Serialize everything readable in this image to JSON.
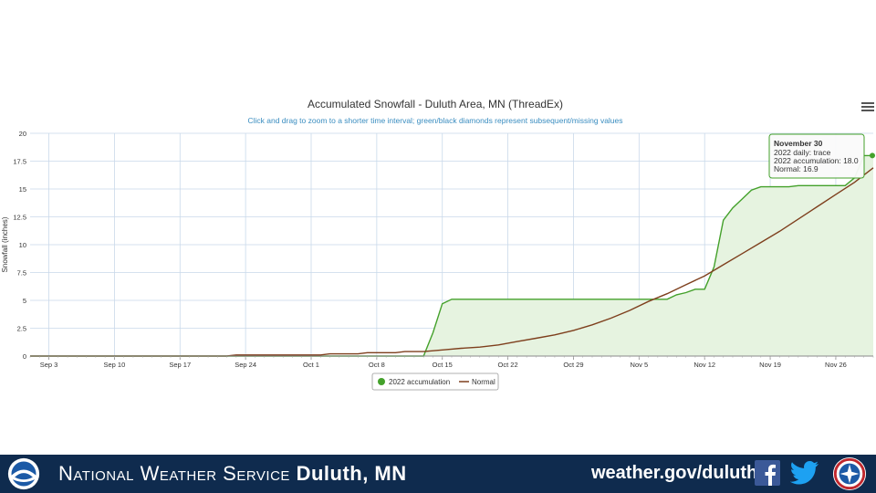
{
  "chart_data": {
    "type": "area",
    "title": "Accumulated Snowfall - Duluth Area, MN (ThreadEx)",
    "subtitle": "Click and drag to zoom to a shorter time interval; green/black diamonds represent subsequent/missing values",
    "ylabel": "Snowfall (inches)",
    "xlabel": "",
    "x_start": "2022-09-01",
    "x_end": "2022-11-30",
    "ylim": [
      0,
      20
    ],
    "yticks": [
      "0",
      "2.5",
      "5",
      "7.5",
      "10",
      "12.5",
      "15",
      "17.5",
      "20"
    ],
    "xticks": [
      "Sep 3",
      "Sep 10",
      "Sep 17",
      "Sep 24",
      "Oct 1",
      "Oct 8",
      "Oct 15",
      "Oct 22",
      "Oct 29",
      "Nov 5",
      "Nov 12",
      "Nov 19",
      "Nov 26"
    ],
    "xtick_dates": [
      "2022-09-03",
      "2022-09-10",
      "2022-09-17",
      "2022-09-24",
      "2022-10-01",
      "2022-10-08",
      "2022-10-15",
      "2022-10-22",
      "2022-10-29",
      "2022-11-05",
      "2022-11-12",
      "2022-11-19",
      "2022-11-26"
    ],
    "grid": true,
    "legend_position": "bottom-center",
    "series": [
      {
        "name": "2022 accumulation",
        "color": "#44a12b",
        "fill": "#e6f3e0",
        "type": "area",
        "points": [
          [
            "2022-09-01",
            0
          ],
          [
            "2022-10-13",
            0
          ],
          [
            "2022-10-14",
            2.1
          ],
          [
            "2022-10-15",
            4.7
          ],
          [
            "2022-10-16",
            5.1
          ],
          [
            "2022-11-08",
            5.1
          ],
          [
            "2022-11-09",
            5.5
          ],
          [
            "2022-11-10",
            5.7
          ],
          [
            "2022-11-11",
            6.0
          ],
          [
            "2022-11-12",
            6.0
          ],
          [
            "2022-11-13",
            8.0
          ],
          [
            "2022-11-14",
            12.2
          ],
          [
            "2022-11-15",
            13.3
          ],
          [
            "2022-11-16",
            14.1
          ],
          [
            "2022-11-17",
            14.9
          ],
          [
            "2022-11-18",
            15.2
          ],
          [
            "2022-11-19",
            15.2
          ],
          [
            "2022-11-20",
            15.2
          ],
          [
            "2022-11-21",
            15.2
          ],
          [
            "2022-11-22",
            15.3
          ],
          [
            "2022-11-27",
            15.3
          ],
          [
            "2022-11-28",
            16.0
          ],
          [
            "2022-11-29",
            18.0
          ],
          [
            "2022-11-30",
            18.0
          ]
        ]
      },
      {
        "name": "Normal",
        "color": "#7e3f1d",
        "type": "line",
        "points": [
          [
            "2022-09-01",
            0
          ],
          [
            "2022-09-22",
            0
          ],
          [
            "2022-09-23",
            0.1
          ],
          [
            "2022-10-02",
            0.1
          ],
          [
            "2022-10-03",
            0.2
          ],
          [
            "2022-10-06",
            0.2
          ],
          [
            "2022-10-07",
            0.3
          ],
          [
            "2022-10-10",
            0.3
          ],
          [
            "2022-10-11",
            0.4
          ],
          [
            "2022-10-13",
            0.4
          ],
          [
            "2022-10-15",
            0.55
          ],
          [
            "2022-10-17",
            0.7
          ],
          [
            "2022-10-19",
            0.8
          ],
          [
            "2022-10-21",
            1.0
          ],
          [
            "2022-10-23",
            1.3
          ],
          [
            "2022-10-25",
            1.6
          ],
          [
            "2022-10-27",
            1.9
          ],
          [
            "2022-10-29",
            2.3
          ],
          [
            "2022-10-31",
            2.8
          ],
          [
            "2022-11-02",
            3.4
          ],
          [
            "2022-11-04",
            4.1
          ],
          [
            "2022-11-06",
            4.9
          ],
          [
            "2022-11-08",
            5.6
          ],
          [
            "2022-11-10",
            6.4
          ],
          [
            "2022-11-12",
            7.2
          ],
          [
            "2022-11-14",
            8.2
          ],
          [
            "2022-11-16",
            9.2
          ],
          [
            "2022-11-18",
            10.2
          ],
          [
            "2022-11-20",
            11.2
          ],
          [
            "2022-11-22",
            12.3
          ],
          [
            "2022-11-24",
            13.4
          ],
          [
            "2022-11-26",
            14.5
          ],
          [
            "2022-11-28",
            15.6
          ],
          [
            "2022-11-30",
            16.9
          ]
        ]
      }
    ],
    "tooltip": {
      "date_label": "November 30",
      "lines": [
        "2022 daily: trace",
        "2022 accumulation: 18.0",
        "Normal: 16.9"
      ]
    }
  },
  "footer": {
    "agency_prefix": "National Weather Service",
    "office": "Duluth, MN",
    "website": "weather.gov/duluth",
    "background": "#0f2b4e"
  },
  "icons": {
    "menu": "hamburger-menu-icon",
    "noaa": "noaa-logo-icon",
    "facebook": "facebook-icon",
    "twitter": "twitter-icon",
    "nws": "nws-logo-icon"
  }
}
